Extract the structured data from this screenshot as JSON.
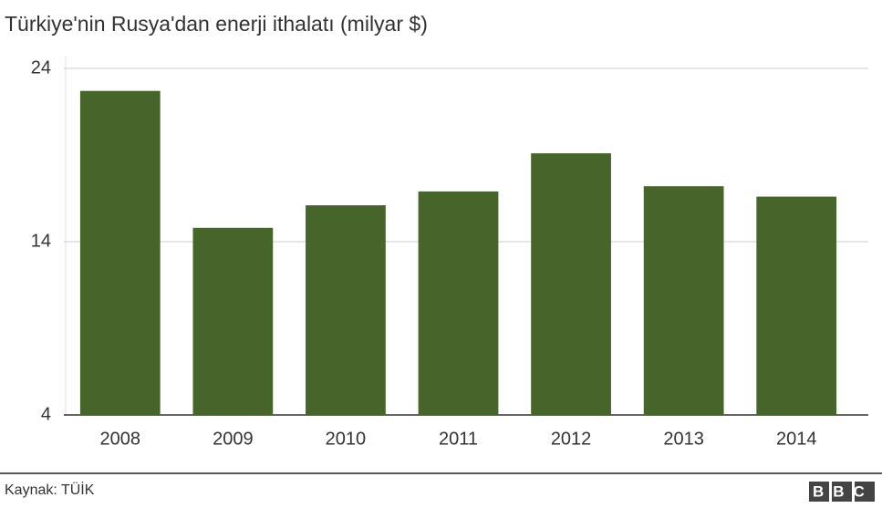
{
  "chart_data": {
    "type": "bar",
    "title": "Türkiye'nin Rusya'dan enerji ithalatı (milyar $)",
    "categories": [
      "2008",
      "2009",
      "2010",
      "2011",
      "2012",
      "2013",
      "2014"
    ],
    "values": [
      22.7,
      14.8,
      16.1,
      16.9,
      19.1,
      17.2,
      16.6
    ],
    "color": "#47642a",
    "ylim": [
      4,
      24
    ],
    "yticks": [
      4,
      14,
      24
    ],
    "grid": true,
    "source": "Kaynak: TÜİK",
    "logo": "BBC"
  }
}
